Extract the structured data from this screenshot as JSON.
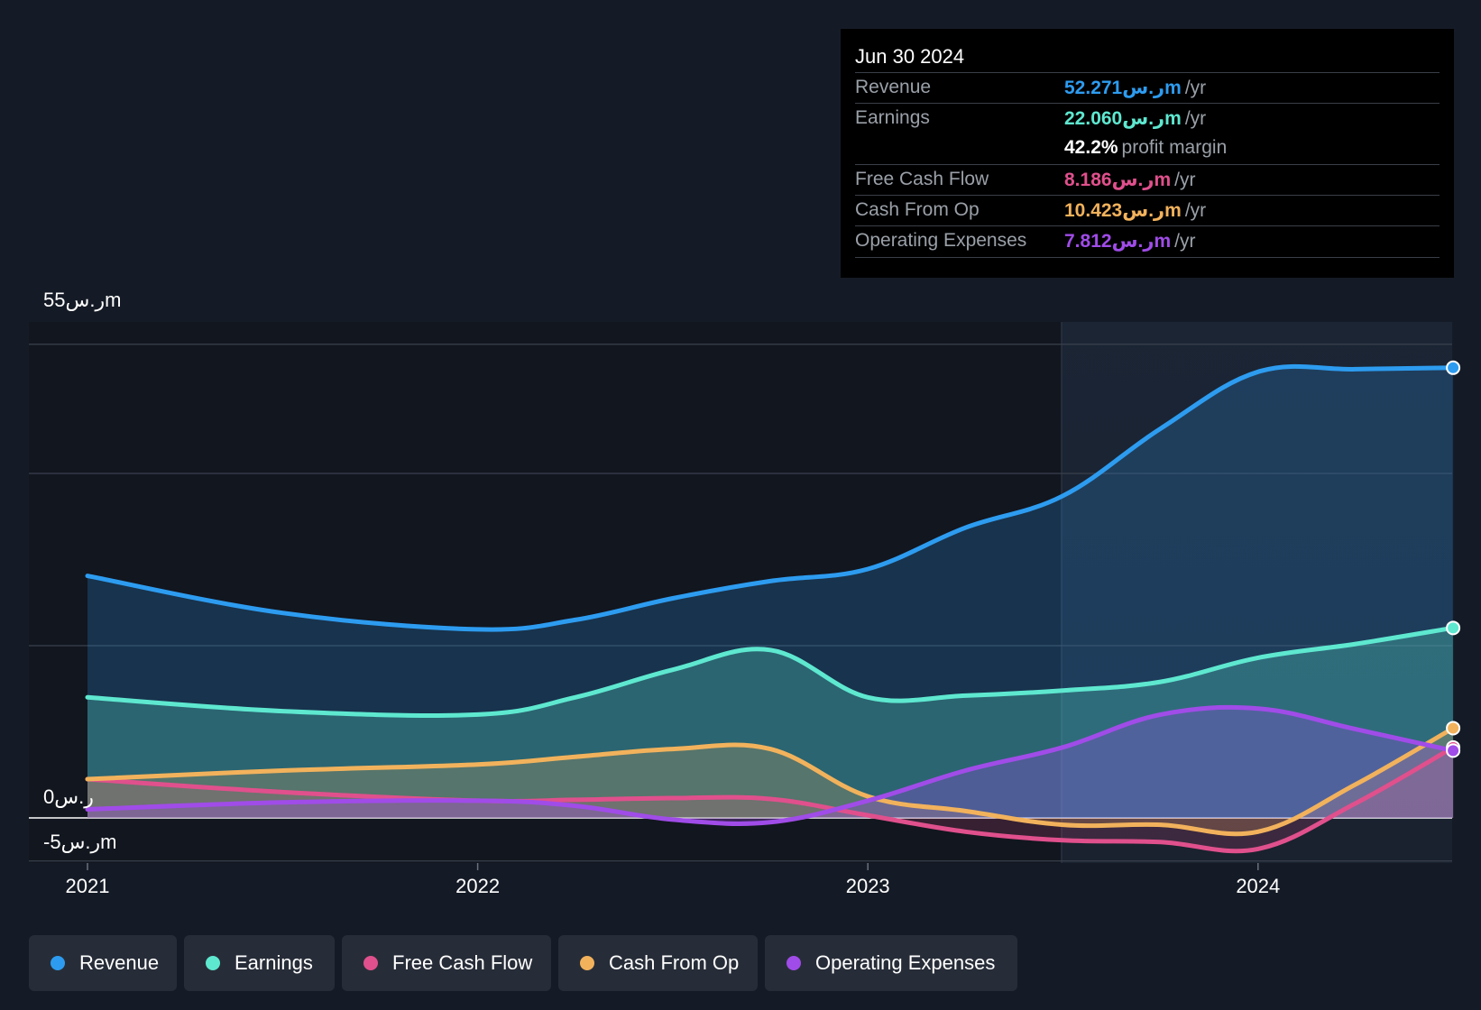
{
  "chart_data": {
    "type": "area",
    "title": "",
    "xlabel": "",
    "ylabel": "",
    "x_ticks": [
      "2021",
      "2022",
      "2023",
      "2024"
    ],
    "y_tick_labels": {
      "top": "55ر.سm",
      "zero": "0ر.س",
      "bottom": "-5ر.سm"
    },
    "ylim": [
      -5,
      55
    ],
    "grid": true,
    "legend_position": "bottom",
    "series": [
      {
        "name": "Revenue",
        "color": "#2d9cf0",
        "x": [
          2021.0,
          2021.5,
          2022.0,
          2022.25,
          2022.5,
          2022.75,
          2023.0,
          2023.25,
          2023.5,
          2023.75,
          2024.0,
          2024.25,
          2024.5
        ],
        "values": [
          28.1,
          23.8,
          21.9,
          23.0,
          25.5,
          27.5,
          28.9,
          33.7,
          37.4,
          45.2,
          51.8,
          52.1,
          52.271
        ]
      },
      {
        "name": "Earnings",
        "color": "#5ee8d0",
        "x": [
          2021.0,
          2021.5,
          2022.0,
          2022.25,
          2022.5,
          2022.75,
          2023.0,
          2023.25,
          2023.5,
          2023.75,
          2024.0,
          2024.25,
          2024.5
        ],
        "values": [
          14.0,
          12.4,
          12.0,
          14.0,
          17.2,
          19.5,
          14.0,
          14.2,
          14.8,
          15.8,
          18.6,
          20.2,
          22.06
        ]
      },
      {
        "name": "Free Cash Flow",
        "color": "#e0508c",
        "x": [
          2021.0,
          2021.5,
          2022.0,
          2022.25,
          2022.5,
          2022.75,
          2023.0,
          2023.25,
          2023.5,
          2023.75,
          2024.0,
          2024.25,
          2024.5
        ],
        "values": [
          4.5,
          3.0,
          2.0,
          2.1,
          2.3,
          2.2,
          0.3,
          -1.6,
          -2.6,
          -2.8,
          -3.6,
          1.7,
          8.186
        ]
      },
      {
        "name": "Cash From Op",
        "color": "#f2b25c",
        "x": [
          2021.0,
          2021.5,
          2022.0,
          2022.25,
          2022.5,
          2022.75,
          2023.0,
          2023.25,
          2023.5,
          2023.75,
          2024.0,
          2024.25,
          2024.5
        ],
        "values": [
          4.5,
          5.5,
          6.2,
          7.1,
          8.0,
          8.0,
          2.5,
          0.8,
          -0.8,
          -0.8,
          -1.6,
          3.9,
          10.423
        ]
      },
      {
        "name": "Operating Expenses",
        "color": "#a04ce8",
        "x": [
          2021.0,
          2021.5,
          2022.0,
          2022.25,
          2022.5,
          2022.75,
          2023.0,
          2023.25,
          2023.5,
          2023.75,
          2024.0,
          2024.25,
          2024.5
        ],
        "values": [
          1.0,
          1.8,
          2.0,
          1.4,
          -0.2,
          -0.5,
          2.0,
          5.5,
          8.2,
          12.0,
          12.7,
          10.3,
          7.812
        ]
      }
    ]
  },
  "tooltip": {
    "date": "Jun 30 2024",
    "rows": [
      {
        "label": "Revenue",
        "value": "52.271ر.سm",
        "unit": "/yr",
        "color": "#2d9cf0"
      },
      {
        "label": "Earnings",
        "value": "22.060ر.سm",
        "unit": "/yr",
        "color": "#5ee8d0"
      },
      {
        "label": "",
        "value": "42.2%",
        "unit": "profit margin",
        "color": "#ffffff"
      },
      {
        "label": "Free Cash Flow",
        "value": "8.186ر.سm",
        "unit": "/yr",
        "color": "#e0508c"
      },
      {
        "label": "Cash From Op",
        "value": "10.423ر.سm",
        "unit": "/yr",
        "color": "#f2b25c"
      },
      {
        "label": "Operating Expenses",
        "value": "7.812ر.سm",
        "unit": "/yr",
        "color": "#a04ce8"
      }
    ]
  },
  "legend": [
    {
      "label": "Revenue",
      "color": "#2d9cf0"
    },
    {
      "label": "Earnings",
      "color": "#5ee8d0"
    },
    {
      "label": "Free Cash Flow",
      "color": "#e0508c"
    },
    {
      "label": "Cash From Op",
      "color": "#f2b25c"
    },
    {
      "label": "Operating Expenses",
      "color": "#a04ce8"
    }
  ],
  "colors": {
    "background": "#151b26",
    "panel": "#000000",
    "legend_bg": "#272d38"
  }
}
